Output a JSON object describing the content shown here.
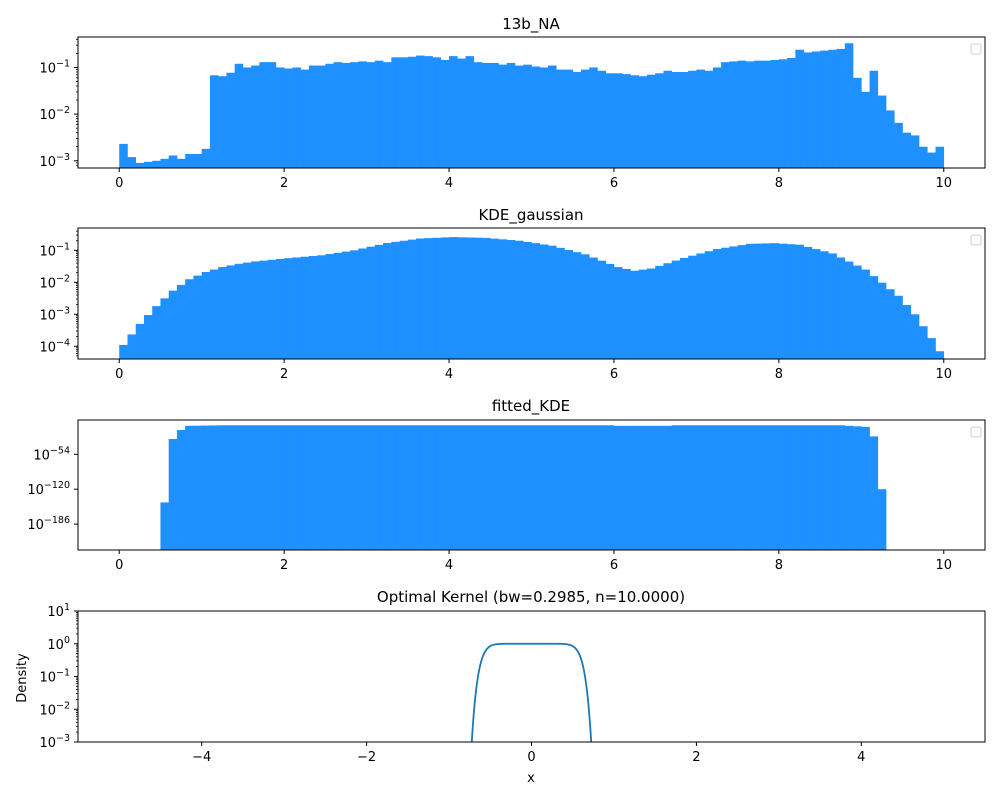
{
  "colors": {
    "bar": "#1e90ff",
    "line": "#1f77b4",
    "axes": "#000000",
    "background": "#ffffff"
  },
  "chart_data": [
    {
      "type": "bar",
      "title": "13b_NA",
      "yscale": "log",
      "xlim": [
        -0.5,
        10.5
      ],
      "ylim": [
        0.0007,
        0.45
      ],
      "xticks": [
        "0",
        "2",
        "4",
        "6",
        "8",
        "10"
      ],
      "yticks": [
        {
          "base": "10",
          "exp": "−3",
          "value": 0.001
        },
        {
          "base": "10",
          "exp": "−2",
          "value": 0.01
        },
        {
          "base": "10",
          "exp": "−1",
          "value": 0.1
        }
      ],
      "legend": "top-right (empty)",
      "bin_width": 0.1,
      "bin_start": 0,
      "values": [
        0.0023,
        0.0012,
        0.0009,
        0.00095,
        0.001,
        0.0011,
        0.0013,
        0.0011,
        0.0014,
        0.0014,
        0.0018,
        0.068,
        0.065,
        0.077,
        0.12,
        0.1,
        0.11,
        0.13,
        0.13,
        0.1,
        0.095,
        0.1,
        0.09,
        0.11,
        0.11,
        0.12,
        0.13,
        0.125,
        0.13,
        0.135,
        0.13,
        0.14,
        0.13,
        0.165,
        0.165,
        0.17,
        0.18,
        0.175,
        0.165,
        0.145,
        0.175,
        0.155,
        0.175,
        0.13,
        0.125,
        0.125,
        0.115,
        0.125,
        0.11,
        0.115,
        0.105,
        0.1,
        0.11,
        0.09,
        0.09,
        0.08,
        0.09,
        0.1,
        0.085,
        0.075,
        0.075,
        0.072,
        0.068,
        0.065,
        0.07,
        0.075,
        0.085,
        0.08,
        0.08,
        0.085,
        0.09,
        0.085,
        0.1,
        0.13,
        0.135,
        0.14,
        0.135,
        0.14,
        0.14,
        0.145,
        0.15,
        0.16,
        0.24,
        0.21,
        0.22,
        0.23,
        0.24,
        0.25,
        0.33,
        0.06,
        0.03,
        0.085,
        0.025,
        0.012,
        0.0065,
        0.004,
        0.0035,
        0.002,
        0.0015,
        0.002
      ]
    },
    {
      "type": "bar",
      "title": "KDE_gaussian",
      "yscale": "log",
      "xlim": [
        -0.5,
        10.5
      ],
      "ylim": [
        4e-05,
        0.5
      ],
      "xticks": [
        "0",
        "2",
        "4",
        "6",
        "8",
        "10"
      ],
      "yticks": [
        {
          "base": "10",
          "exp": "−4",
          "value": 0.0001
        },
        {
          "base": "10",
          "exp": "−3",
          "value": 0.001
        },
        {
          "base": "10",
          "exp": "−2",
          "value": 0.01
        },
        {
          "base": "10",
          "exp": "−1",
          "value": 0.1
        }
      ],
      "legend": "top-right (empty)",
      "bin_width": 0.1,
      "bin_start": 0,
      "anchors": [
        [
          0.05,
          0.00011
        ],
        [
          0.25,
          0.0005
        ],
        [
          0.45,
          0.0018
        ],
        [
          0.65,
          0.0055
        ],
        [
          0.85,
          0.0125
        ],
        [
          1.05,
          0.021
        ],
        [
          1.25,
          0.03
        ],
        [
          1.45,
          0.038
        ],
        [
          1.65,
          0.045
        ],
        [
          2.05,
          0.057
        ],
        [
          2.45,
          0.07
        ],
        [
          2.85,
          0.1
        ],
        [
          3.25,
          0.17
        ],
        [
          3.65,
          0.235
        ],
        [
          4.05,
          0.26
        ],
        [
          4.45,
          0.245
        ],
        [
          4.85,
          0.2
        ],
        [
          5.25,
          0.14
        ],
        [
          5.65,
          0.075
        ],
        [
          6.05,
          0.03
        ],
        [
          6.25,
          0.023
        ],
        [
          6.45,
          0.027
        ],
        [
          6.85,
          0.058
        ],
        [
          7.25,
          0.11
        ],
        [
          7.65,
          0.16
        ],
        [
          7.95,
          0.168
        ],
        [
          8.25,
          0.15
        ],
        [
          8.65,
          0.08
        ],
        [
          9.05,
          0.025
        ],
        [
          9.45,
          0.0038
        ],
        [
          9.65,
          0.001
        ],
        [
          9.85,
          0.00018
        ],
        [
          9.95,
          7e-05
        ]
      ]
    },
    {
      "type": "bar",
      "title": "fitted_KDE",
      "yscale": "log",
      "xlim": [
        -0.5,
        10.5
      ],
      "ylog_range": [
        -235,
        11
      ],
      "xticks": [
        "0",
        "2",
        "4",
        "6",
        "8",
        "10"
      ],
      "yticks": [
        {
          "base": "10",
          "exp": "−54",
          "value": -54
        },
        {
          "base": "10",
          "exp": "−120",
          "value": -120
        },
        {
          "base": "10",
          "exp": "−186",
          "value": -186
        }
      ],
      "legend": "top-right (empty)",
      "bin_width": 0.1,
      "bin_start": 0,
      "log_values_anchors": [
        [
          0.45,
          -235
        ],
        [
          0.55,
          -145
        ],
        [
          0.65,
          -25
        ],
        [
          0.75,
          -8
        ],
        [
          0.85,
          0
        ],
        [
          1.25,
          1
        ],
        [
          5.95,
          1
        ],
        [
          6.05,
          0
        ],
        [
          6.65,
          0
        ],
        [
          6.75,
          1
        ],
        [
          8.75,
          1
        ],
        [
          8.85,
          0
        ],
        [
          9.05,
          -2
        ],
        [
          9.15,
          -20
        ],
        [
          9.25,
          -120
        ],
        [
          9.35,
          -235
        ]
      ]
    },
    {
      "type": "line",
      "title": "Optimal Kernel (bw=0.2985, n=10.0000)",
      "xlabel": "x",
      "ylabel": "Density",
      "yscale": "log",
      "xlim": [
        -5.5,
        5.5
      ],
      "ylim": [
        0.001,
        10
      ],
      "xticks": [
        {
          "label": "−4",
          "value": -4
        },
        {
          "label": "−2",
          "value": -2
        },
        {
          "label": "0",
          "value": 0
        },
        {
          "label": "2",
          "value": 2
        },
        {
          "label": "4",
          "value": 4
        }
      ],
      "yticks": [
        {
          "base": "10",
          "exp": "−3",
          "value": 0.001
        },
        {
          "base": "10",
          "exp": "−2",
          "value": 0.01
        },
        {
          "base": "10",
          "exp": "−1",
          "value": 0.1
        },
        {
          "base": "10",
          "exp": "0",
          "value": 1
        },
        {
          "base": "10",
          "exp": "1",
          "value": 10
        }
      ],
      "bw": 0.2985,
      "n": 10
    }
  ]
}
